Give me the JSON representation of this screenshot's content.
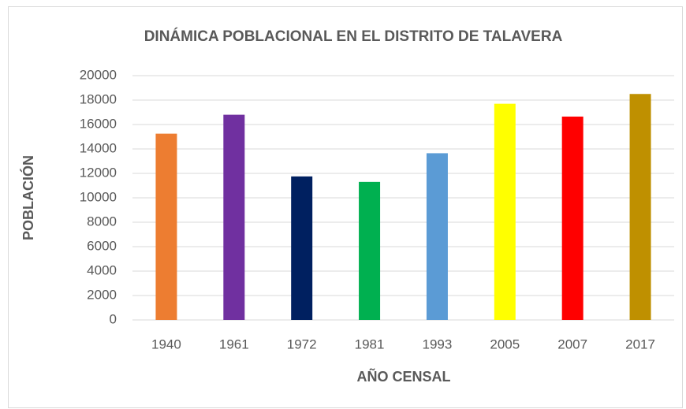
{
  "chart_data": {
    "type": "bar",
    "title": "DINÁMICA POBLACIONAL EN EL DISTRITO DE TALAVERA",
    "x_label": "AÑO CENSAL",
    "y_label": "POBLACIÓN",
    "categories": [
      "1940",
      "1961",
      "1972",
      "1981",
      "1993",
      "2005",
      "2007",
      "2017"
    ],
    "values": [
      15250,
      16800,
      11750,
      11300,
      13650,
      17700,
      16650,
      18500
    ],
    "colors": [
      "#ed7d31",
      "#7030a0",
      "#002060",
      "#00b050",
      "#5b9bd5",
      "#ffff00",
      "#ff0000",
      "#bf9000"
    ],
    "ylim": [
      0,
      20000
    ],
    "yticks": [
      0,
      2000,
      4000,
      6000,
      8000,
      10000,
      12000,
      14000,
      16000,
      18000,
      20000
    ],
    "grid": true
  }
}
